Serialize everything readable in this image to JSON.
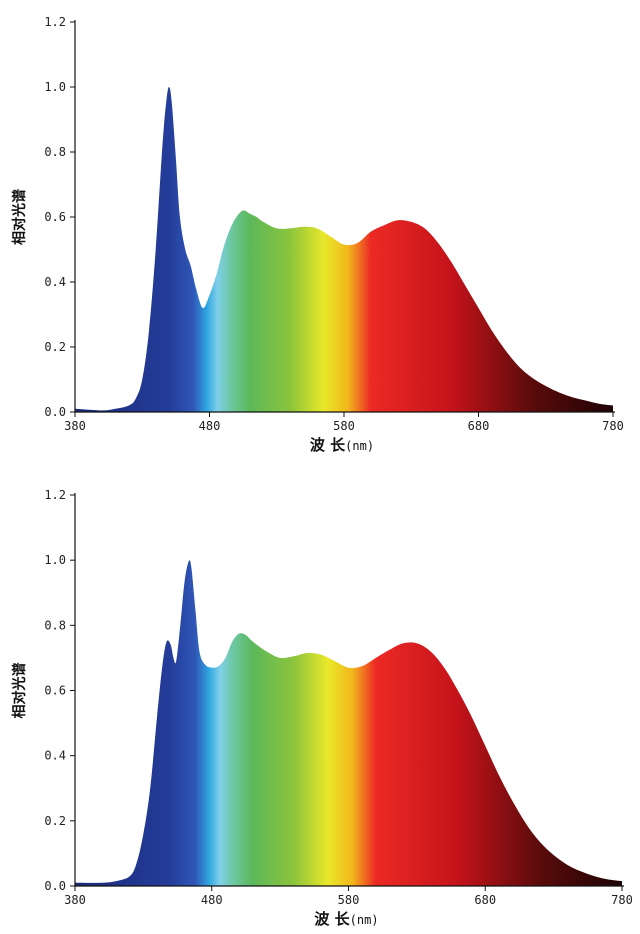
{
  "colors": {
    "spectrum_stops": [
      {
        "nm": 380,
        "color": "#1a2a78"
      },
      {
        "nm": 450,
        "color": "#243d9a"
      },
      {
        "nm": 468,
        "color": "#2f57b8"
      },
      {
        "nm": 478,
        "color": "#2fa6e0"
      },
      {
        "nm": 486,
        "color": "#7fd0ea"
      },
      {
        "nm": 496,
        "color": "#6cc7a0"
      },
      {
        "nm": 510,
        "color": "#5cb85a"
      },
      {
        "nm": 540,
        "color": "#8cc43c"
      },
      {
        "nm": 565,
        "color": "#e9e82a"
      },
      {
        "nm": 583,
        "color": "#f2b61c"
      },
      {
        "nm": 600,
        "color": "#ec2a24"
      },
      {
        "nm": 660,
        "color": "#c4131a"
      },
      {
        "nm": 720,
        "color": "#5a0b0b"
      },
      {
        "nm": 780,
        "color": "#1e0305"
      }
    ],
    "axis": "#111111"
  },
  "chart_data": [
    {
      "type": "area",
      "ylabel": "相对光谱",
      "xlabel": "波 长",
      "xlabel_unit": "(nm)",
      "xlim": [
        380,
        780
      ],
      "ylim": [
        0,
        1.2
      ],
      "xticks": [
        "380",
        "480",
        "580",
        "680",
        "780"
      ],
      "yticks": [
        "0.0",
        "0.2",
        "0.4",
        "0.6",
        "0.8",
        "1.0",
        "1.2"
      ],
      "grid": false,
      "x": [
        380,
        400,
        410,
        420,
        425,
        430,
        435,
        440,
        445,
        448,
        450,
        452,
        455,
        458,
        462,
        466,
        470,
        475,
        480,
        485,
        490,
        495,
        500,
        505,
        510,
        515,
        520,
        530,
        540,
        550,
        560,
        570,
        580,
        590,
        600,
        610,
        620,
        630,
        640,
        650,
        660,
        670,
        680,
        690,
        700,
        710,
        720,
        730,
        740,
        750,
        760,
        770,
        780
      ],
      "y": [
        0.01,
        0.005,
        0.01,
        0.02,
        0.04,
        0.1,
        0.25,
        0.5,
        0.82,
        0.96,
        1.0,
        0.95,
        0.78,
        0.6,
        0.5,
        0.45,
        0.38,
        0.32,
        0.36,
        0.42,
        0.5,
        0.56,
        0.6,
        0.62,
        0.61,
        0.6,
        0.585,
        0.565,
        0.565,
        0.57,
        0.565,
        0.54,
        0.515,
        0.52,
        0.555,
        0.575,
        0.59,
        0.585,
        0.565,
        0.52,
        0.46,
        0.39,
        0.32,
        0.25,
        0.19,
        0.14,
        0.105,
        0.08,
        0.06,
        0.045,
        0.035,
        0.025,
        0.02
      ]
    },
    {
      "type": "area",
      "ylabel": "相对光谱",
      "xlabel": "波 长",
      "xlabel_unit": "(nm)",
      "xlim": [
        380,
        780
      ],
      "ylim": [
        0,
        1.2
      ],
      "xticks": [
        "380",
        "480",
        "580",
        "680",
        "780"
      ],
      "yticks": [
        "0.0",
        "0.2",
        "0.4",
        "0.6",
        "0.8",
        "1.0",
        "1.2"
      ],
      "grid": false,
      "x": [
        380,
        400,
        410,
        420,
        425,
        430,
        435,
        440,
        444,
        447,
        450,
        452,
        454,
        457,
        460,
        463,
        465,
        468,
        471,
        475,
        480,
        485,
        490,
        495,
        500,
        505,
        510,
        520,
        530,
        540,
        550,
        560,
        570,
        580,
        590,
        600,
        610,
        620,
        630,
        640,
        650,
        660,
        670,
        680,
        690,
        700,
        710,
        720,
        730,
        740,
        750,
        760,
        770,
        780
      ],
      "y": [
        0.01,
        0.01,
        0.015,
        0.03,
        0.07,
        0.16,
        0.3,
        0.52,
        0.68,
        0.75,
        0.74,
        0.7,
        0.69,
        0.8,
        0.93,
        0.995,
        0.98,
        0.85,
        0.72,
        0.68,
        0.67,
        0.675,
        0.7,
        0.75,
        0.775,
        0.77,
        0.75,
        0.72,
        0.7,
        0.705,
        0.715,
        0.71,
        0.69,
        0.67,
        0.675,
        0.7,
        0.725,
        0.745,
        0.745,
        0.72,
        0.67,
        0.6,
        0.52,
        0.43,
        0.34,
        0.26,
        0.19,
        0.135,
        0.095,
        0.065,
        0.045,
        0.03,
        0.02,
        0.015
      ]
    }
  ]
}
